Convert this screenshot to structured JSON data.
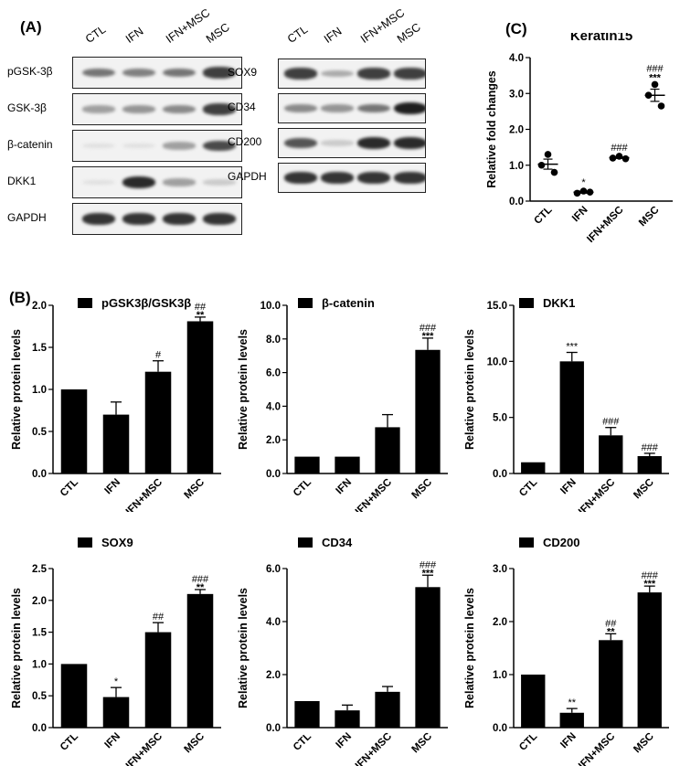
{
  "panel_labels": {
    "a": "(A)",
    "b": "(B)",
    "c": "(C)"
  },
  "blot_left": {
    "lanes": [
      "CTL",
      "IFN",
      "IFN+MSC",
      "MSC"
    ],
    "rows": [
      {
        "label": "pGSK-3β",
        "intensity": [
          0.55,
          0.5,
          0.55,
          0.8
        ]
      },
      {
        "label": "GSK-3β",
        "intensity": [
          0.35,
          0.4,
          0.45,
          0.8
        ]
      },
      {
        "label": "β-catenin",
        "intensity": [
          0.05,
          0.05,
          0.35,
          0.75
        ]
      },
      {
        "label": "DKK1",
        "intensity": [
          0.05,
          0.9,
          0.35,
          0.15
        ]
      },
      {
        "label": "GAPDH",
        "intensity": [
          0.85,
          0.85,
          0.85,
          0.85
        ]
      }
    ]
  },
  "blot_right": {
    "lanes": [
      "CTL",
      "IFN",
      "IFN+MSC",
      "MSC"
    ],
    "rows": [
      {
        "label": "SOX9",
        "intensity": [
          0.8,
          0.3,
          0.8,
          0.8
        ]
      },
      {
        "label": "CD34",
        "intensity": [
          0.45,
          0.4,
          0.55,
          0.95
        ]
      },
      {
        "label": "CD200",
        "intensity": [
          0.7,
          0.15,
          0.9,
          0.9
        ]
      },
      {
        "label": "GAPDH",
        "intensity": [
          0.85,
          0.85,
          0.85,
          0.85
        ]
      }
    ]
  },
  "chart_data": [
    {
      "id": "keratin15",
      "type": "scatter",
      "title": "Keratin15",
      "ylabel": "Relative fold changes",
      "categories": [
        "CTL",
        "IFN",
        "IFN+MSC",
        "MSC"
      ],
      "yticks": [
        "0.0",
        "1.0",
        "2.0",
        "3.0",
        "4.0"
      ],
      "ylim": [
        0,
        4
      ],
      "points": [
        [
          1.3,
          1.0,
          0.8
        ],
        [
          0.28,
          0.22,
          0.25
        ],
        [
          1.25,
          1.2,
          1.18
        ],
        [
          3.25,
          2.95,
          2.65
        ]
      ],
      "means": [
        1.03,
        0.25,
        1.21,
        2.95
      ],
      "errors": [
        0.14,
        0.03,
        0.02,
        0.17
      ],
      "annotations": [
        [
          "",
          ""
        ],
        [
          "*",
          ""
        ],
        [
          "###",
          ""
        ],
        [
          "###",
          "***"
        ]
      ]
    },
    {
      "id": "pgsk",
      "type": "bar",
      "title": "pGSK3β/GSK3β",
      "ylabel": "Relative protein levels",
      "categories": [
        "CTL",
        "IFN",
        "IFN+MSC",
        "MSC"
      ],
      "yticks": [
        "0.0",
        "0.5",
        "1.0",
        "1.5",
        "2.0"
      ],
      "ylim": [
        0,
        2
      ],
      "values": [
        1.0,
        0.7,
        1.21,
        1.81
      ],
      "errors": [
        0,
        0.15,
        0.13,
        0.05
      ],
      "annotations": [
        [
          "",
          ""
        ],
        [
          "",
          ""
        ],
        [
          "#",
          ""
        ],
        [
          "##",
          "**"
        ]
      ]
    },
    {
      "id": "bcat",
      "type": "bar",
      "title": "β-catenin",
      "ylabel": "Relative protein levels",
      "categories": [
        "CTL",
        "IFN",
        "IFN+MSC",
        "MSC"
      ],
      "yticks": [
        "0.0",
        "2.0",
        "4.0",
        "6.0",
        "8.0",
        "10.0"
      ],
      "ylim": [
        0,
        10
      ],
      "values": [
        1.0,
        1.0,
        2.75,
        7.35
      ],
      "errors": [
        0,
        0,
        0.75,
        0.7
      ],
      "annotations": [
        [
          "",
          ""
        ],
        [
          "",
          ""
        ],
        [
          "",
          ""
        ],
        [
          "###",
          "***"
        ]
      ]
    },
    {
      "id": "dkk1",
      "type": "bar",
      "title": "DKK1",
      "ylabel": "Relative protein levels",
      "categories": [
        "CTL",
        "IFN",
        "IFN+MSC",
        "MSC"
      ],
      "yticks": [
        "0.0",
        "5.0",
        "10.0",
        "15.0"
      ],
      "ylim": [
        0,
        15
      ],
      "values": [
        1.0,
        10.0,
        3.4,
        1.55
      ],
      "errors": [
        0,
        0.8,
        0.7,
        0.25
      ],
      "annotations": [
        [
          "",
          ""
        ],
        [
          "***",
          ""
        ],
        [
          "###",
          ""
        ],
        [
          "###",
          ""
        ]
      ]
    },
    {
      "id": "sox9",
      "type": "bar",
      "title": "SOX9",
      "ylabel": "Relative protein levels",
      "categories": [
        "CTL",
        "IFN",
        "IFN+MSC",
        "MSC"
      ],
      "yticks": [
        "0.0",
        "0.5",
        "1.0",
        "1.5",
        "2.0",
        "2.5"
      ],
      "ylim": [
        0,
        2.5
      ],
      "values": [
        1.0,
        0.48,
        1.5,
        2.1
      ],
      "errors": [
        0,
        0.15,
        0.15,
        0.07
      ],
      "annotations": [
        [
          "",
          ""
        ],
        [
          "*",
          ""
        ],
        [
          "##",
          ""
        ],
        [
          "###",
          "**"
        ]
      ]
    },
    {
      "id": "cd34",
      "type": "bar",
      "title": "CD34",
      "ylabel": "Relative protein levels",
      "categories": [
        "CTL",
        "IFN",
        "IFN+MSC",
        "MSC"
      ],
      "yticks": [
        "0.0",
        "2.0",
        "4.0",
        "6.0"
      ],
      "ylim": [
        0,
        6
      ],
      "values": [
        1.0,
        0.65,
        1.35,
        5.3
      ],
      "errors": [
        0,
        0.2,
        0.2,
        0.45
      ],
      "annotations": [
        [
          "",
          ""
        ],
        [
          "",
          ""
        ],
        [
          "",
          ""
        ],
        [
          "###",
          "***"
        ]
      ]
    },
    {
      "id": "cd200",
      "type": "bar",
      "title": "CD200",
      "ylabel": "Relative protein levels",
      "categories": [
        "CTL",
        "IFN",
        "IFN+MSC",
        "MSC"
      ],
      "yticks": [
        "0.0",
        "1.0",
        "2.0",
        "3.0"
      ],
      "ylim": [
        0,
        3
      ],
      "values": [
        1.0,
        0.28,
        1.65,
        2.55
      ],
      "errors": [
        0,
        0.08,
        0.12,
        0.12
      ],
      "annotations": [
        [
          "",
          ""
        ],
        [
          "**",
          ""
        ],
        [
          "##",
          "**"
        ],
        [
          "###",
          "***"
        ]
      ]
    }
  ]
}
